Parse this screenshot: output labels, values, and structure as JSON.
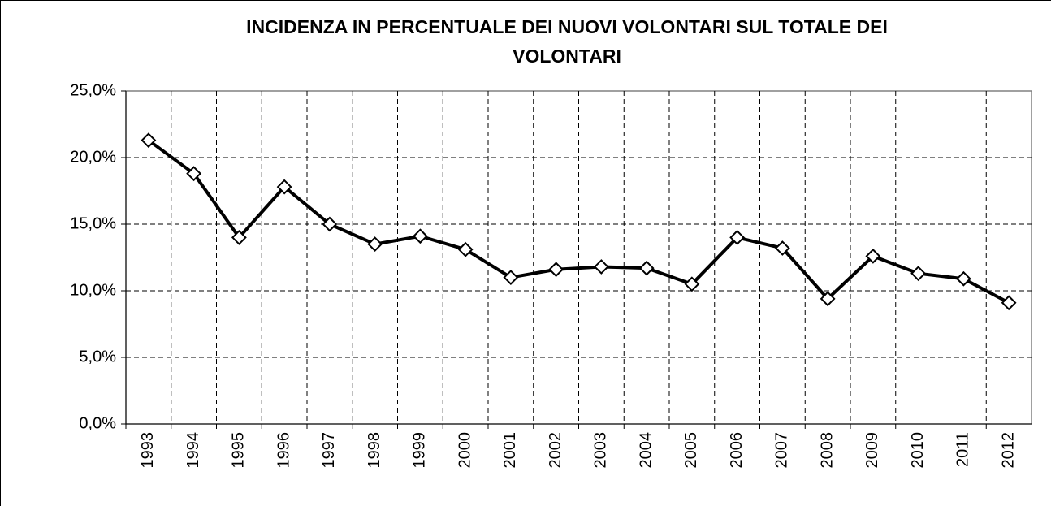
{
  "chart_data": {
    "type": "line",
    "title": [
      "INCIDENZA IN PERCENTUALE DEI NUOVI VOLONTARI SUL TOTALE  DEI",
      "VOLONTARI"
    ],
    "categories": [
      "1993",
      "1994",
      "1995",
      "1996",
      "1997",
      "1998",
      "1999",
      "2000",
      "2001",
      "2002",
      "2003",
      "2004",
      "2005",
      "2006",
      "2007",
      "2008",
      "2009",
      "2010",
      "2011",
      "2012"
    ],
    "series": [
      {
        "color": "#000000",
        "values": [
          21.3,
          18.8,
          14.0,
          17.8,
          15.0,
          13.5,
          14.1,
          13.1,
          11.0,
          11.6,
          11.8,
          11.7,
          10.5,
          14.0,
          13.2,
          9.4,
          12.6,
          11.3,
          10.9,
          9.1
        ]
      }
    ],
    "ylim": [
      0,
      25
    ],
    "yticks": [
      {
        "value": 0,
        "label": "0,0%"
      },
      {
        "value": 5,
        "label": "5,0%"
      },
      {
        "value": 10,
        "label": "10,0%"
      },
      {
        "value": 15,
        "label": "15,0%"
      },
      {
        "value": 20,
        "label": "20,0%"
      },
      {
        "value": 25,
        "label": "25,0%"
      }
    ],
    "grid": true
  }
}
